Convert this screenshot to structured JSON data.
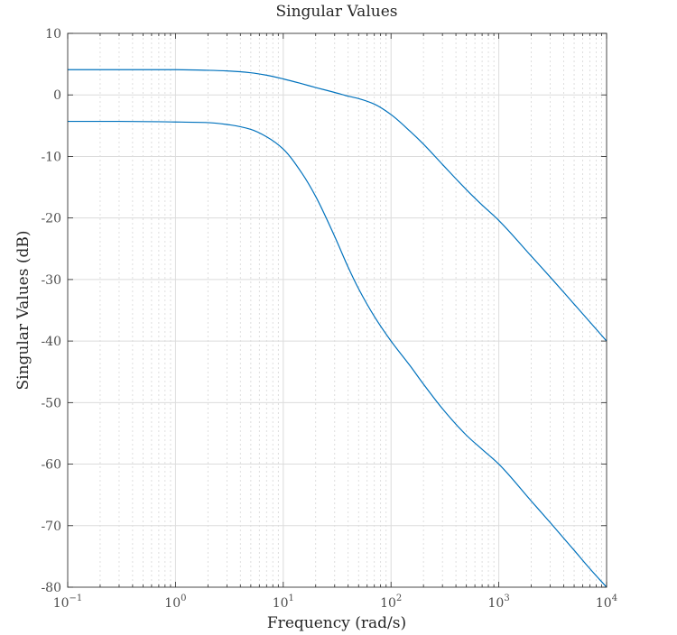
{
  "chart_data": {
    "type": "line",
    "title": "Singular Values",
    "xlabel": "Frequency (rad/s)",
    "ylabel": "Singular Values (dB)",
    "xscale": "log",
    "xlim": [
      0.1,
      10000
    ],
    "ylim": [
      -80,
      10
    ],
    "grid": true,
    "minor_grid": true,
    "legend": "none",
    "x_ticks": [
      {
        "value": 0.1,
        "base": "10",
        "exp": "−1"
      },
      {
        "value": 1,
        "base": "10",
        "exp": "0"
      },
      {
        "value": 10,
        "base": "10",
        "exp": "1"
      },
      {
        "value": 100,
        "base": "10",
        "exp": "2"
      },
      {
        "value": 1000,
        "base": "10",
        "exp": "3"
      },
      {
        "value": 10000,
        "base": "10",
        "exp": "4"
      }
    ],
    "y_ticks": [
      10,
      0,
      -10,
      -20,
      -30,
      -40,
      -50,
      -60,
      -70,
      -80
    ],
    "y_tick_labels": [
      "10",
      "0",
      "-10",
      "-20",
      "-30",
      "-40",
      "-50",
      "-60",
      "-70",
      "-80"
    ],
    "series": [
      {
        "color": "#0072bd",
        "points": [
          [
            0.1,
            4.1
          ],
          [
            0.3,
            4.1
          ],
          [
            1,
            4.1
          ],
          [
            2,
            4.0
          ],
          [
            3,
            3.9
          ],
          [
            5,
            3.6
          ],
          [
            7,
            3.2
          ],
          [
            10,
            2.6
          ],
          [
            15,
            1.8
          ],
          [
            20,
            1.2
          ],
          [
            30,
            0.4
          ],
          [
            40,
            -0.2
          ],
          [
            50,
            -0.6
          ],
          [
            70,
            -1.5
          ],
          [
            100,
            -3.2
          ],
          [
            150,
            -5.9
          ],
          [
            200,
            -8.0
          ],
          [
            300,
            -11.3
          ],
          [
            500,
            -15.4
          ],
          [
            700,
            -17.9
          ],
          [
            1000,
            -20.4
          ],
          [
            2000,
            -26.2
          ],
          [
            3000,
            -29.6
          ],
          [
            5000,
            -34.0
          ],
          [
            7000,
            -36.9
          ],
          [
            10000,
            -40.0
          ]
        ]
      },
      {
        "color": "#0072bd",
        "points": [
          [
            0.1,
            -4.3
          ],
          [
            0.3,
            -4.3
          ],
          [
            1,
            -4.4
          ],
          [
            2,
            -4.5
          ],
          [
            3,
            -4.8
          ],
          [
            5,
            -5.6
          ],
          [
            7,
            -6.8
          ],
          [
            10,
            -8.8
          ],
          [
            15,
            -12.8
          ],
          [
            20,
            -16.5
          ],
          [
            30,
            -23.0
          ],
          [
            40,
            -28.0
          ],
          [
            50,
            -31.5
          ],
          [
            70,
            -36.0
          ],
          [
            100,
            -40.0
          ],
          [
            150,
            -44.0
          ],
          [
            200,
            -47.0
          ],
          [
            300,
            -51.0
          ],
          [
            500,
            -55.3
          ],
          [
            700,
            -57.6
          ],
          [
            1000,
            -60.0
          ],
          [
            2000,
            -66.0
          ],
          [
            3000,
            -69.5
          ],
          [
            5000,
            -74.0
          ],
          [
            7000,
            -77.0
          ],
          [
            10000,
            -80.0
          ]
        ]
      }
    ]
  }
}
